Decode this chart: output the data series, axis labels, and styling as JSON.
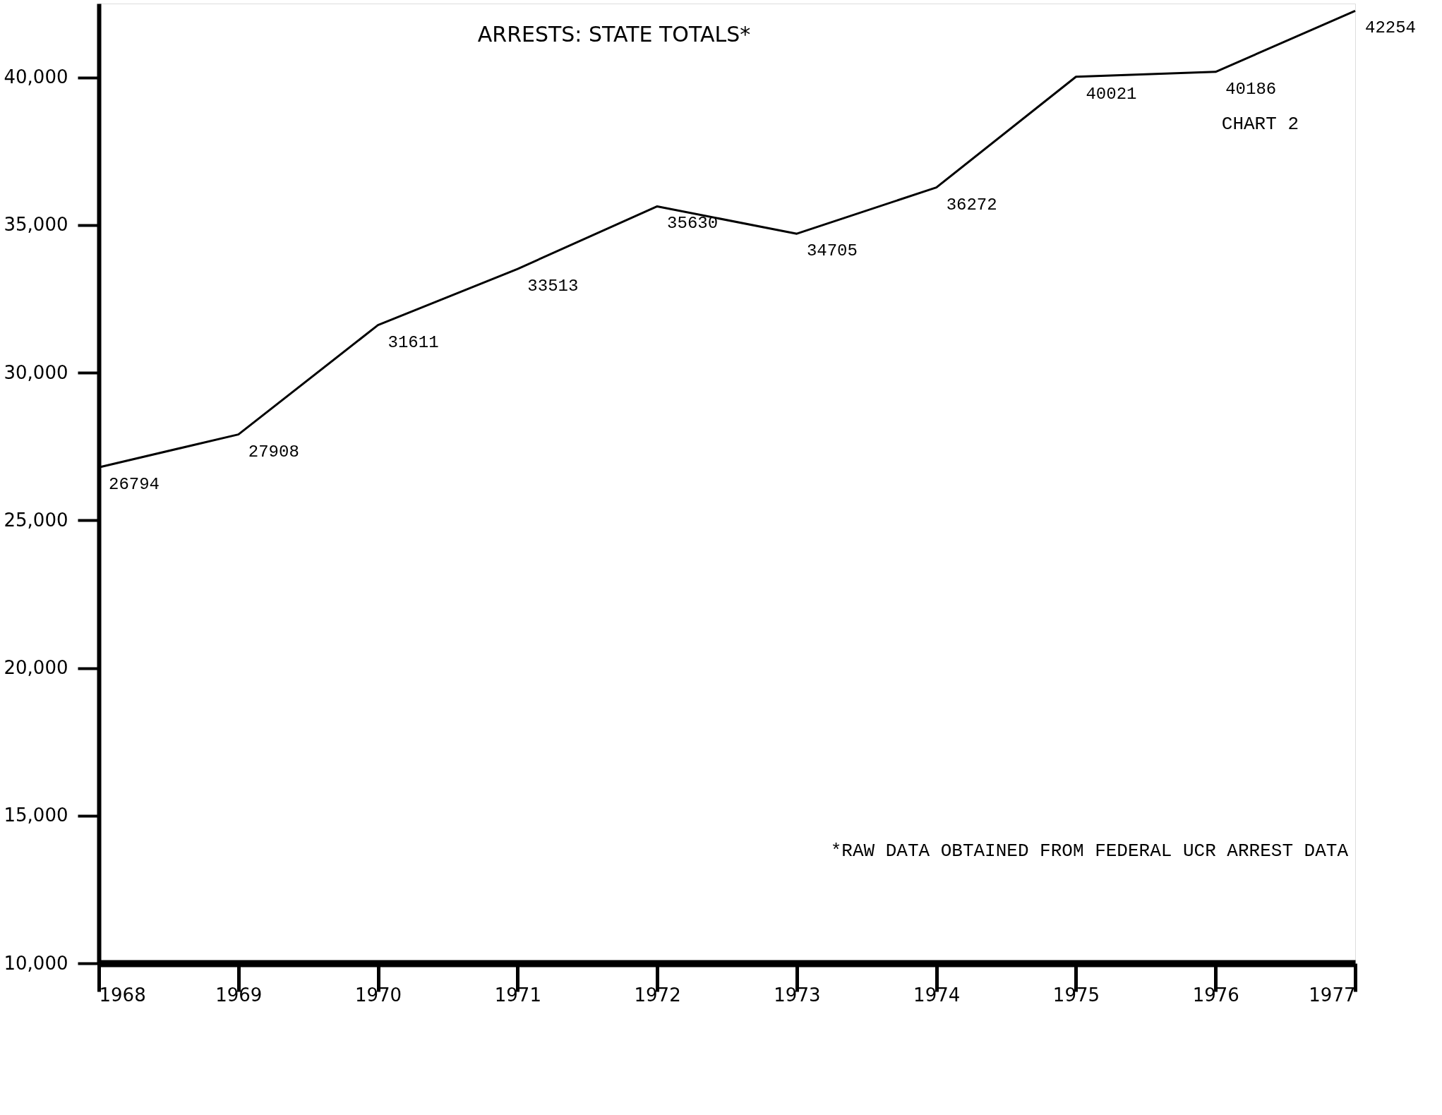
{
  "chart_data": {
    "type": "line",
    "title": "ARRESTS: STATE TOTALS*",
    "x": [
      1968,
      1969,
      1970,
      1971,
      1972,
      1973,
      1974,
      1975,
      1976,
      1977
    ],
    "values": [
      26794,
      27908,
      31611,
      33513,
      35630,
      34705,
      36272,
      40021,
      40186,
      42254
    ],
    "color": "#000000",
    "data_labels": true,
    "marker": "none",
    "line_style": "solid",
    "grid": false,
    "legend": false,
    "xlim": [
      1968,
      1977
    ],
    "xticks": [
      1968,
      1969,
      1970,
      1971,
      1972,
      1973,
      1974,
      1975,
      1976,
      1977
    ],
    "ylim": [
      10000,
      42500
    ],
    "yticks": [
      {
        "value": 10000,
        "label": "10,000"
      },
      {
        "value": 15000,
        "label": "15,000"
      },
      {
        "value": 20000,
        "label": "20,000"
      },
      {
        "value": 25000,
        "label": "25,000"
      },
      {
        "value": 30000,
        "label": "30,000"
      },
      {
        "value": 35000,
        "label": "35,000"
      },
      {
        "value": 40000,
        "label": "40,000"
      }
    ],
    "annotations": [
      "CHART 2",
      "*RAW DATA OBTAINED FROM FEDERAL UCR ARREST DATA"
    ]
  }
}
